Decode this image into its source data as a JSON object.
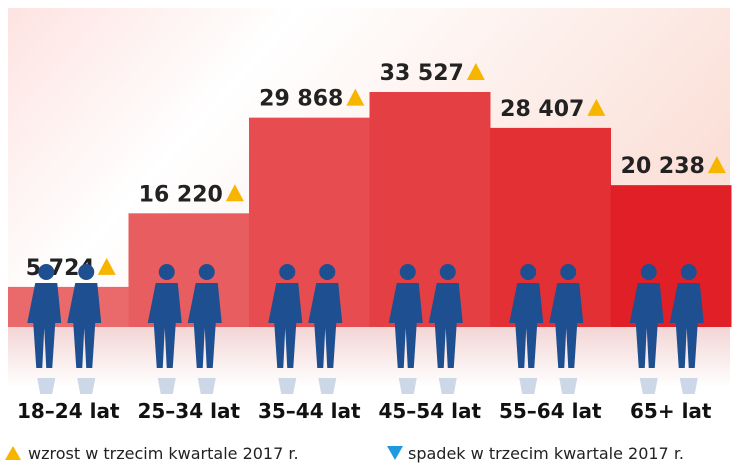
{
  "chart_data": {
    "type": "bar",
    "categories": [
      "18–24 lat",
      "25–34 lat",
      "35–44 lat",
      "45–54 lat",
      "55–64 lat",
      "65+ lat"
    ],
    "values": [
      5724,
      16220,
      29868,
      33527,
      28407,
      20238
    ],
    "value_labels": [
      "5 724",
      "16 220",
      "29 868",
      "33 527",
      "28 407",
      "20 238"
    ],
    "colors": [
      "#ea6a6c",
      "#e85d60",
      "#e64c50",
      "#e43f43",
      "#e33034",
      "#e11f26"
    ],
    "legend": [
      "wzrost w trzecim kwartale 2017 r.",
      "spadek w trzecim kwartale 2017 r."
    ]
  }
}
